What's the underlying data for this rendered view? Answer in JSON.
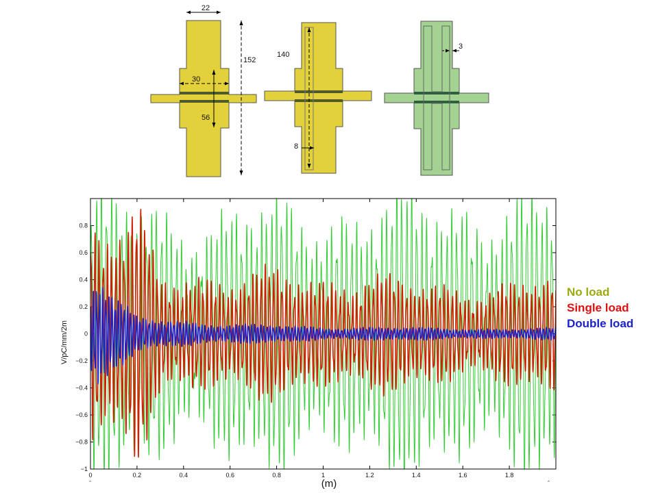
{
  "diagram": {
    "colors": {
      "yellow": "#e3d13b",
      "green": "#a3d293",
      "outline": "#555555"
    },
    "dimensions": {
      "top_width": "22",
      "height_full": "152",
      "mid_width": "30",
      "mid_height": "56",
      "slot_length": "140",
      "slot_offset": "8",
      "green_gap": "3"
    }
  },
  "chart_data": {
    "type": "line",
    "title": "",
    "xlabel": "(m)",
    "ylabel": "V/pC/mm/2m",
    "xlim": [
      0,
      2.0
    ],
    "ylim": [
      -1.0,
      1.0
    ],
    "xticks": [
      0,
      0.2,
      0.4,
      0.6,
      0.8,
      1,
      1.2,
      1.4,
      1.6,
      1.8
    ],
    "xtick_labels": [
      "0",
      "0.2",
      "0.4",
      "0.6",
      "0.8",
      "1",
      "1.2",
      "1.4",
      "1.6",
      "1.8"
    ],
    "yticks": [
      -1,
      -0.8,
      -0.6,
      -0.4,
      -0.2,
      0,
      0.2,
      0.4,
      0.6,
      0.8
    ],
    "ytick_labels": [
      "−1",
      "−0.8",
      "−0.6",
      "−0.4",
      "−0.2",
      "0",
      "0.2",
      "0.4",
      "0.6",
      "0.8"
    ],
    "grid": false,
    "legend_position": "right",
    "series": [
      {
        "name": "No load",
        "color": "#33cc33",
        "label_color": "#9aaa10",
        "envelope": [
          [
            0,
            1.0
          ],
          [
            0.2,
            0.95
          ],
          [
            0.5,
            0.9
          ],
          [
            1.0,
            0.95
          ],
          [
            1.5,
            1.0
          ],
          [
            2.0,
            1.0
          ]
        ],
        "cycles": 93,
        "phase": 0.3
      },
      {
        "name": "Single load",
        "color": "#cc2200",
        "label_color": "#e01010",
        "envelope": [
          [
            0,
            0.8
          ],
          [
            0.05,
            0.7
          ],
          [
            0.15,
            0.75
          ],
          [
            0.2,
            0.9
          ],
          [
            0.3,
            0.45
          ],
          [
            0.4,
            0.5
          ],
          [
            0.6,
            0.4
          ],
          [
            0.8,
            0.45
          ],
          [
            1.0,
            0.42
          ],
          [
            1.2,
            0.45
          ],
          [
            1.4,
            0.35
          ],
          [
            1.6,
            0.35
          ],
          [
            1.8,
            0.4
          ],
          [
            2.0,
            0.4
          ]
        ],
        "cycles": 112,
        "phase": 1.1
      },
      {
        "name": "Double load",
        "color": "#1a22cc",
        "label_color": "#1a22cc",
        "envelope": [
          [
            0,
            0.35
          ],
          [
            0.03,
            0.45
          ],
          [
            0.1,
            0.25
          ],
          [
            0.2,
            0.12
          ],
          [
            0.4,
            0.1
          ],
          [
            0.6,
            0.07
          ],
          [
            0.8,
            0.06
          ],
          [
            1.0,
            0.05
          ],
          [
            1.2,
            0.05
          ],
          [
            1.5,
            0.04
          ],
          [
            2.0,
            0.04
          ]
        ],
        "cycles": 150,
        "phase": 2.0
      }
    ]
  }
}
